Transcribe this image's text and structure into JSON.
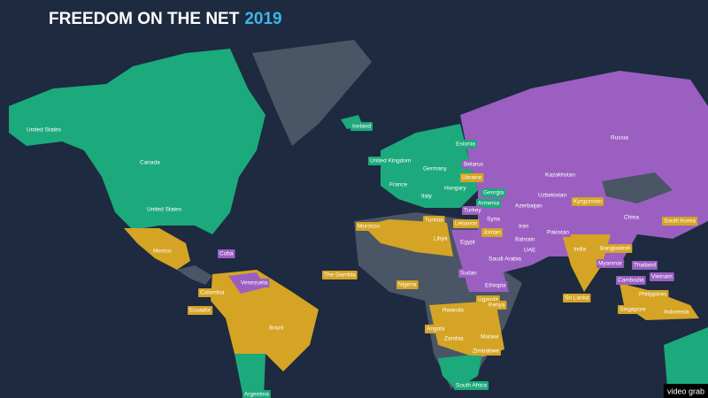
{
  "header": {
    "title": "FREEDOM ON THE NET",
    "year": "2019"
  },
  "map": {
    "labels": [
      {
        "text": "United States",
        "color": "#1ca97c"
      },
      {
        "text": "Canada",
        "color": "#1ca97c"
      },
      {
        "text": "United States",
        "color": "#1ca97c"
      },
      {
        "text": "Iceland",
        "color": "#1ca97c"
      },
      {
        "text": "Estonia",
        "color": "#1ca97c"
      },
      {
        "text": "United Kingdom",
        "color": "#1ca97c"
      },
      {
        "text": "Germany",
        "color": "#1ca97c"
      },
      {
        "text": "Belarus",
        "color": "#9b5fc1"
      },
      {
        "text": "France",
        "color": "#1ca97c"
      },
      {
        "text": "Ukraine",
        "color": "#d5a425"
      },
      {
        "text": "Hungary",
        "color": "#1ca97c"
      },
      {
        "text": "Italy",
        "color": "#1ca97c"
      },
      {
        "text": "Georgia",
        "color": "#1ca97c"
      },
      {
        "text": "Armenia",
        "color": "#1ca97c"
      },
      {
        "text": "Russia",
        "color": "#9b5fc1"
      },
      {
        "text": "Kazakhstan",
        "color": "#9b5fc1"
      },
      {
        "text": "Uzbekistan",
        "color": "#9b5fc1"
      },
      {
        "text": "Kyrgyzstan",
        "color": "#d5a425"
      },
      {
        "text": "Azerbaijan",
        "color": "#9b5fc1"
      },
      {
        "text": "Turkey",
        "color": "#9b5fc1"
      },
      {
        "text": "Syria",
        "color": "#9b5fc1"
      },
      {
        "text": "Iran",
        "color": "#9b5fc1"
      },
      {
        "text": "China",
        "color": "#9b5fc1"
      },
      {
        "text": "South Korea",
        "color": "#d5a425"
      },
      {
        "text": "Tunisia",
        "color": "#d5a425"
      },
      {
        "text": "Morocco",
        "color": "#d5a425"
      },
      {
        "text": "Lebanon",
        "color": "#d5a425"
      },
      {
        "text": "Jordan",
        "color": "#d5a425"
      },
      {
        "text": "Libya",
        "color": "#d5a425"
      },
      {
        "text": "Egypt",
        "color": "#9b5fc1"
      },
      {
        "text": "Bahrain",
        "color": "#9b5fc1"
      },
      {
        "text": "Pakistan",
        "color": "#9b5fc1"
      },
      {
        "text": "UAE",
        "color": "#9b5fc1"
      },
      {
        "text": "Saudi Arabia",
        "color": "#9b5fc1"
      },
      {
        "text": "India",
        "color": "#d5a425"
      },
      {
        "text": "Bangladesh",
        "color": "#d5a425"
      },
      {
        "text": "Myanmar",
        "color": "#9b5fc1"
      },
      {
        "text": "Thailand",
        "color": "#9b5fc1"
      },
      {
        "text": "Mexico",
        "color": "#d5a425"
      },
      {
        "text": "Cuba",
        "color": "#9b5fc1"
      },
      {
        "text": "The Gambia",
        "color": "#d5a425"
      },
      {
        "text": "Venezuela",
        "color": "#9b5fc1"
      },
      {
        "text": "Sudan",
        "color": "#9b5fc1"
      },
      {
        "text": "Ethiopia",
        "color": "#9b5fc1"
      },
      {
        "text": "Nigeria",
        "color": "#d5a425"
      },
      {
        "text": "Colombia",
        "color": "#d5a425"
      },
      {
        "text": "Cambodia",
        "color": "#9b5fc1"
      },
      {
        "text": "Vietnam",
        "color": "#9b5fc1"
      },
      {
        "text": "Philippines",
        "color": "#d5a425"
      },
      {
        "text": "Ecuador",
        "color": "#d5a425"
      },
      {
        "text": "Uganda",
        "color": "#d5a425"
      },
      {
        "text": "Kenya",
        "color": "#d5a425"
      },
      {
        "text": "Sri Lanka",
        "color": "#d5a425"
      },
      {
        "text": "Singapore",
        "color": "#d5a425"
      },
      {
        "text": "Indonesia",
        "color": "#d5a425"
      },
      {
        "text": "Rwanda",
        "color": "#d5a425"
      },
      {
        "text": "Brazil",
        "color": "#d5a425"
      },
      {
        "text": "Angola",
        "color": "#d5a425"
      },
      {
        "text": "Zambia",
        "color": "#d5a425"
      },
      {
        "text": "Malawi",
        "color": "#d5a425"
      },
      {
        "text": "Zimbabwe",
        "color": "#d5a425"
      },
      {
        "text": "South Africa",
        "color": "#1ca97c"
      },
      {
        "text": "Argentina",
        "color": "#1ca97c"
      }
    ]
  },
  "footer": {
    "credit": "video grab"
  }
}
